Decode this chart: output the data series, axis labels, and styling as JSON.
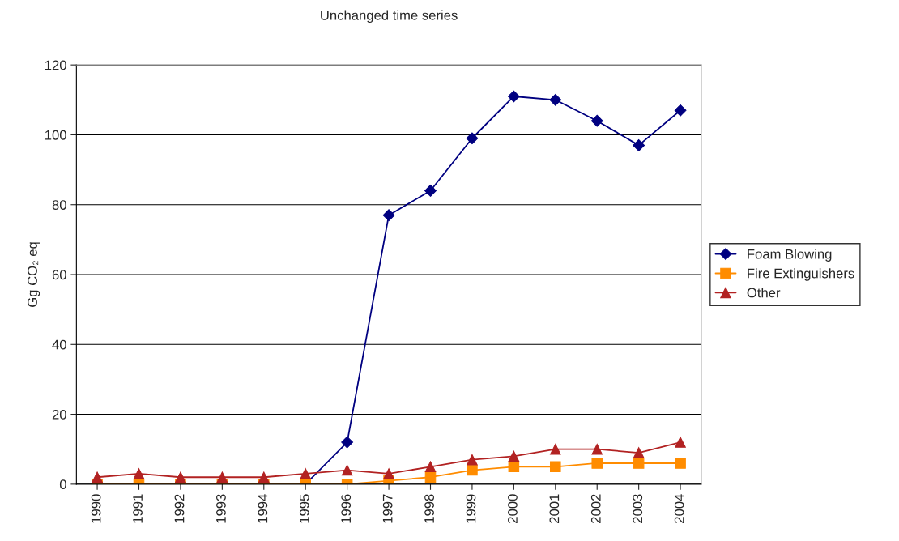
{
  "chart_data": {
    "type": "line",
    "title": "Unchanged time series",
    "ylabel": "Gg CO₂ eq",
    "categories": [
      "1990",
      "1991",
      "1992",
      "1993",
      "1994",
      "1995",
      "1996",
      "1997",
      "1998",
      "1999",
      "2000",
      "2001",
      "2002",
      "2003",
      "2004"
    ],
    "series": [
      {
        "name": "Foam Blowing",
        "color": "#000080",
        "marker": "diamond",
        "values": [
          null,
          null,
          null,
          null,
          null,
          0,
          12,
          77,
          84,
          99,
          111,
          110,
          104,
          97,
          107
        ]
      },
      {
        "name": "Fire Extinguishers",
        "color": "#ff8c00",
        "marker": "square",
        "values": [
          0,
          0,
          0,
          0,
          0,
          0,
          0,
          1,
          2,
          4,
          5,
          5,
          6,
          6,
          6
        ]
      },
      {
        "name": "Other",
        "color": "#b22222",
        "marker": "triangle",
        "values": [
          2,
          3,
          2,
          2,
          2,
          3,
          4,
          3,
          5,
          7,
          8,
          10,
          10,
          9,
          12
        ]
      }
    ],
    "ylim": [
      0,
      120
    ],
    "yticks": [
      0,
      20,
      40,
      60,
      80,
      100,
      120
    ],
    "grid": "y",
    "legend": "right"
  }
}
